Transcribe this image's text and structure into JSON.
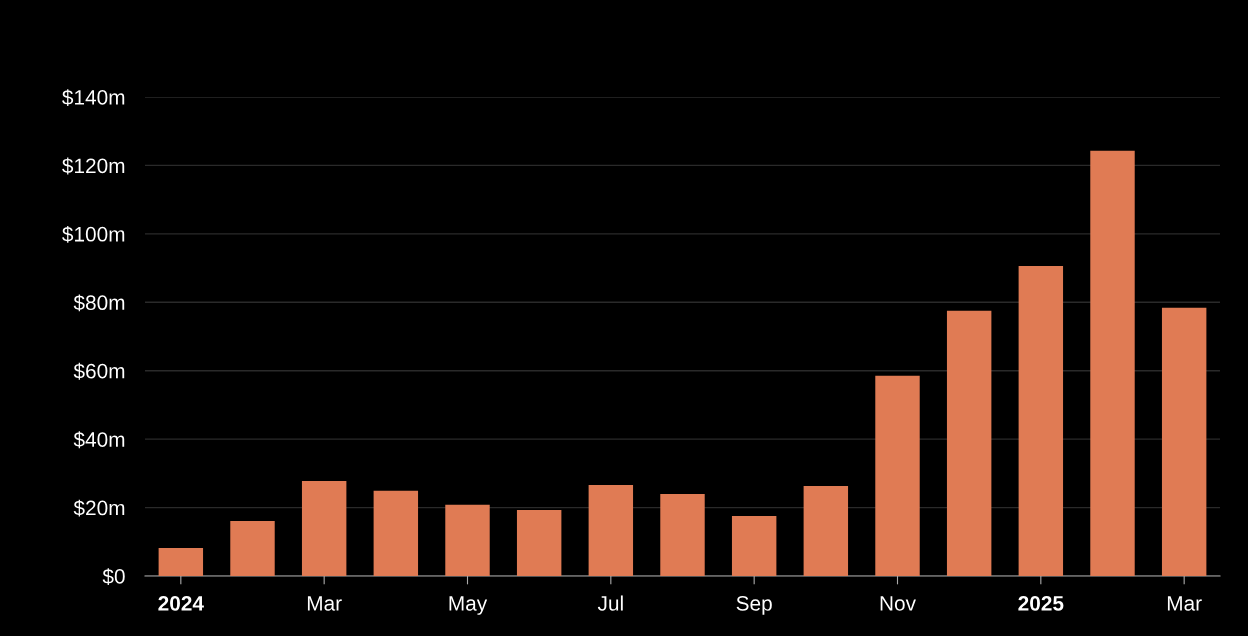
{
  "chart_data": {
    "type": "bar",
    "categories": [
      "2024",
      null,
      "Mar",
      null,
      "May",
      null,
      "Jul",
      null,
      "Sep",
      null,
      "Nov",
      null,
      "2025",
      null,
      "Mar"
    ],
    "values": [
      8.2,
      16.1,
      27.8,
      24.9,
      20.8,
      19.3,
      26.6,
      24.0,
      17.5,
      26.3,
      58.5,
      77.5,
      90.6,
      124.3,
      78.4
    ],
    "color": "#e07b54",
    "ylim": [
      0,
      140
    ],
    "yticks": [
      {
        "value": 0,
        "label": "$0"
      },
      {
        "value": 20,
        "label": "$20m"
      },
      {
        "value": 40,
        "label": "$40m"
      },
      {
        "value": 60,
        "label": "$60m"
      },
      {
        "value": 80,
        "label": "$80m"
      },
      {
        "value": 100,
        "label": "$100m"
      },
      {
        "value": 120,
        "label": "$120m"
      },
      {
        "value": 140,
        "label": "$140m"
      }
    ],
    "grid": "y",
    "legend": false
  }
}
